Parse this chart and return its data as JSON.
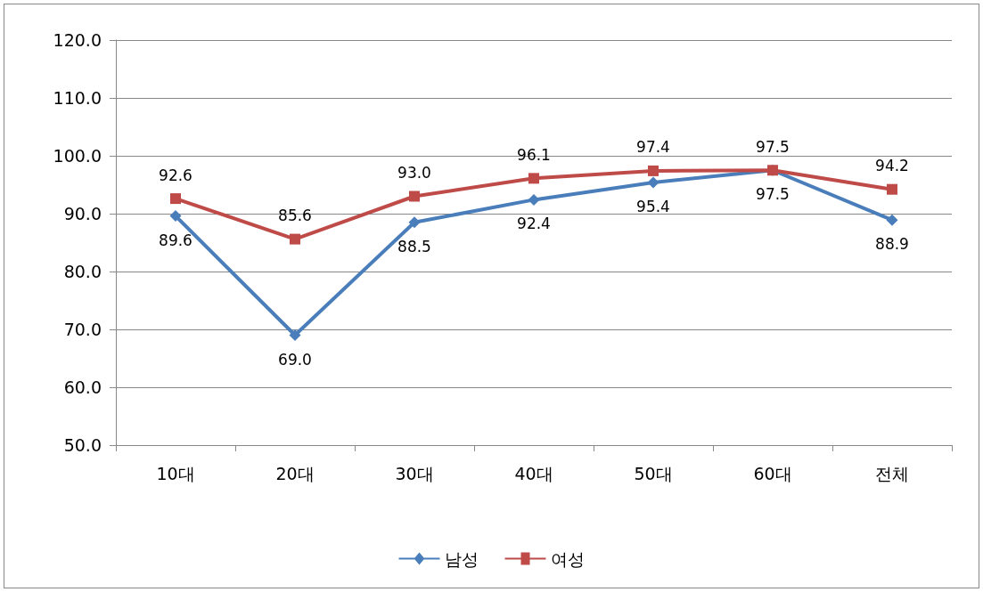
{
  "chart_data": {
    "type": "line",
    "categories": [
      "10대",
      "20대",
      "30대",
      "40대",
      "50대",
      "60대",
      "전체"
    ],
    "series": [
      {
        "name": "남성",
        "color": "#4a7ebb",
        "marker": "diamond",
        "values": [
          89.6,
          69.0,
          88.5,
          92.4,
          95.4,
          97.5,
          88.9
        ],
        "value_labels": [
          "89.6",
          "69.0",
          "88.5",
          "92.4",
          "95.4",
          "97.5",
          "88.9"
        ]
      },
      {
        "name": "여성",
        "color": "#be4b48",
        "marker": "square",
        "values": [
          92.6,
          85.6,
          93.0,
          96.1,
          97.4,
          97.5,
          94.2
        ],
        "value_labels": [
          "92.6",
          "85.6",
          "93.0",
          "96.1",
          "97.4",
          "97.5",
          "94.2"
        ]
      }
    ],
    "ylim": [
      50,
      120
    ],
    "yticks": [
      {
        "value": 50,
        "label": "50.0"
      },
      {
        "value": 60,
        "label": "60.0"
      },
      {
        "value": 70,
        "label": "70.0"
      },
      {
        "value": 80,
        "label": "80.0"
      },
      {
        "value": 90,
        "label": "90.0"
      },
      {
        "value": 100,
        "label": "100.0"
      },
      {
        "value": 110,
        "label": "110.0"
      },
      {
        "value": 120,
        "label": "120.0"
      }
    ],
    "grid": "y",
    "legend": "bottom",
    "line_style": "solid"
  }
}
